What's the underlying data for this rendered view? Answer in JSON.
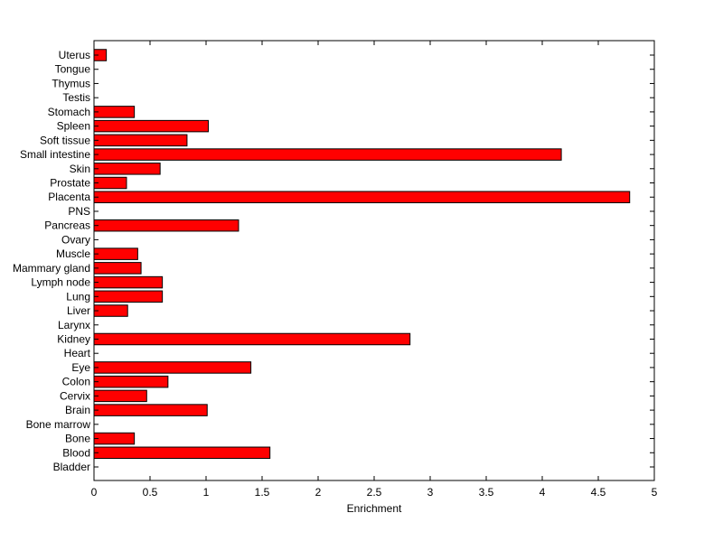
{
  "chart_data": {
    "type": "bar",
    "orientation": "horizontal",
    "title": "",
    "xlabel": "Enrichment",
    "ylabel": "",
    "xlim": [
      0,
      5
    ],
    "x_ticks": [
      0,
      0.5,
      1,
      1.5,
      2,
      2.5,
      3,
      3.5,
      4,
      4.5,
      5
    ],
    "x_tick_labels": [
      "0",
      "0.5",
      "1",
      "1.5",
      "2",
      "2.5",
      "3",
      "3.5",
      "4",
      "4.5",
      "5"
    ],
    "grid": false,
    "categories": [
      "Bladder",
      "Blood",
      "Bone",
      "Bone marrow",
      "Brain",
      "Cervix",
      "Colon",
      "Eye",
      "Heart",
      "Kidney",
      "Larynx",
      "Liver",
      "Lung",
      "Lymph node",
      "Mammary gland",
      "Muscle",
      "Ovary",
      "Pancreas",
      "PNS",
      "Placenta",
      "Prostate",
      "Skin",
      "Small intestine",
      "Soft tissue",
      "Spleen",
      "Stomach",
      "Testis",
      "Thymus",
      "Tongue",
      "Uterus"
    ],
    "values": [
      0,
      1.57,
      0.36,
      0,
      1.01,
      0.47,
      0.66,
      1.4,
      0,
      2.82,
      0,
      0.3,
      0.61,
      0.61,
      0.42,
      0.39,
      0,
      1.29,
      0,
      4.78,
      0.29,
      0.59,
      4.17,
      0.83,
      1.02,
      0.36,
      0,
      0,
      0,
      0.11
    ],
    "bar_color": "#ff0000",
    "bar_edge_color": "#000000"
  }
}
